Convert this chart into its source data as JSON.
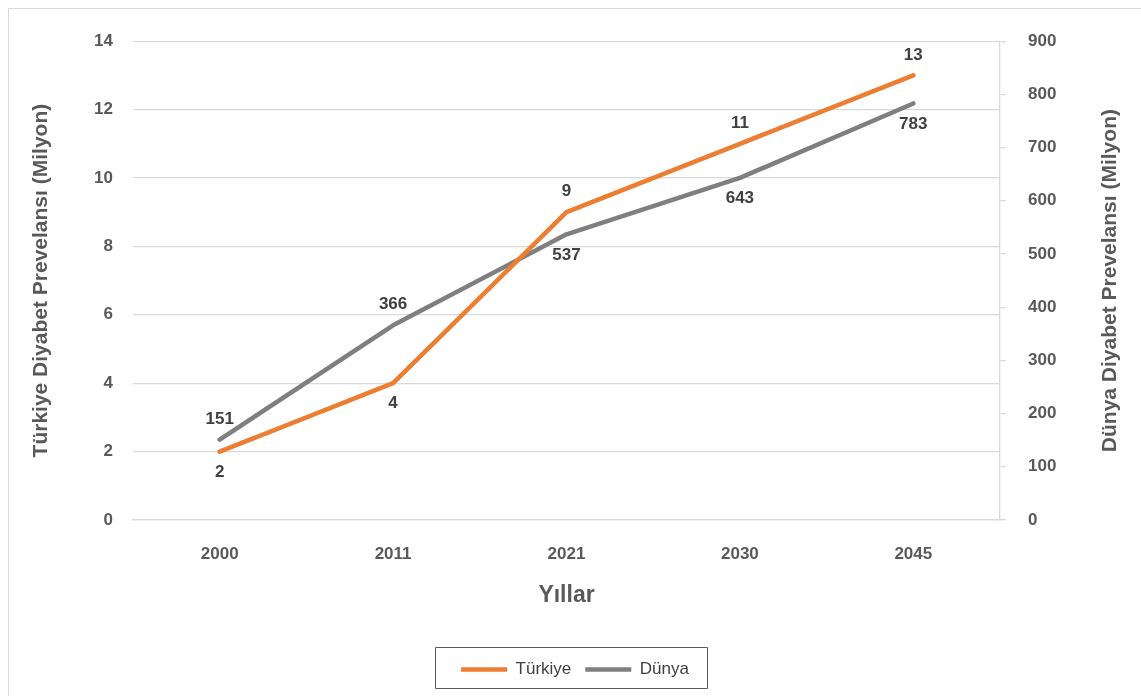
{
  "chart_data": {
    "type": "line",
    "xlabel": "Yıllar",
    "ylabel": "Türkiye Diyabet Prevelansı (Milyon)",
    "y2label": "Dünya Diyabet Prevelansı (Milyon)",
    "categories": [
      "2000",
      "2011",
      "2021",
      "2030",
      "2045"
    ],
    "series": [
      {
        "name": "Türkiye",
        "color": "#ed7d31",
        "values": [
          2,
          4,
          9,
          11,
          13
        ]
      },
      {
        "name": "Dünya",
        "color": "#7f7f7f",
        "values": [
          151,
          366,
          537,
          643,
          783
        ],
        "axis": "y2"
      }
    ],
    "ylim": [
      0,
      14
    ],
    "yticks": [
      0,
      2,
      4,
      6,
      8,
      10,
      12,
      14
    ],
    "y2lim": [
      0,
      900
    ],
    "y2ticks": [
      0,
      100,
      200,
      300,
      400,
      500,
      600,
      700,
      800,
      900
    ],
    "grid": "y",
    "legend": "bottom",
    "data_labels": true,
    "marker": "none",
    "line_style": "solid"
  }
}
